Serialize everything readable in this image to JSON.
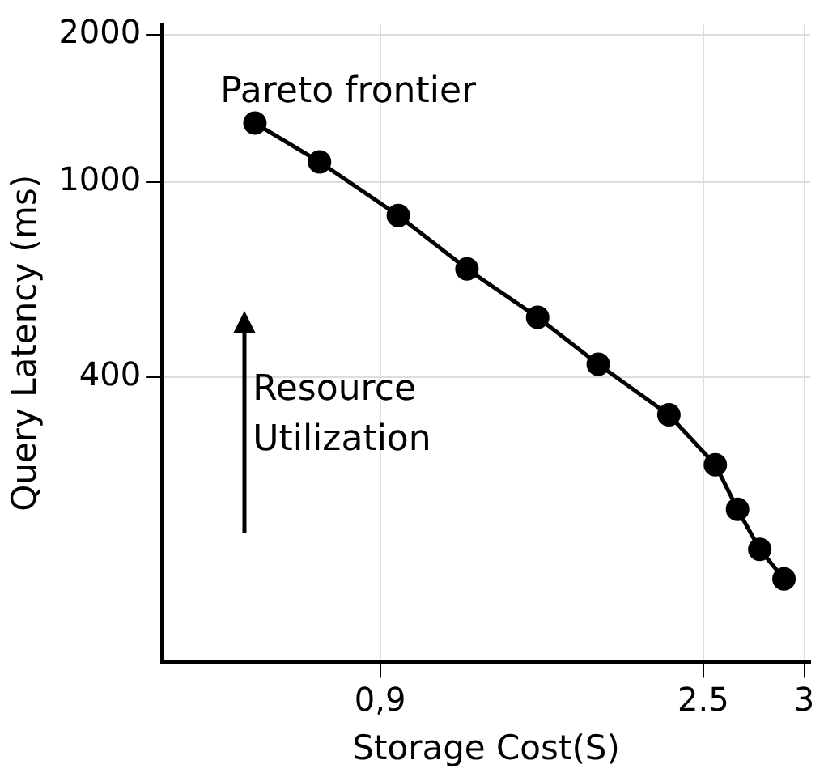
{
  "chart_data": {
    "type": "line",
    "xlabel": "Storage Cost(S)",
    "ylabel": "Query Latency (ms)",
    "x": [
      0.28,
      0.6,
      0.99,
      1.33,
      1.68,
      1.98,
      2.33,
      2.56,
      2.67,
      2.78,
      2.9
    ],
    "series": [
      {
        "color": "#000000",
        "values": [
          1320,
          1100,
          855,
          665,
          530,
          425,
          335,
          265,
          215,
          178,
          155
        ]
      }
    ],
    "log": "y",
    "xlim": [
      -0.18,
      3.03
    ],
    "ylim": [
      105,
      2100
    ],
    "xticks": [
      {
        "value": 0.9,
        "label": "0,9"
      },
      2.5,
      3
    ],
    "yticks": [
      400,
      1000,
      2000
    ],
    "grid": true,
    "marker": "circle",
    "line_style": "solid",
    "annotations": [
      "Pareto frontier",
      "Resource Utilization"
    ]
  }
}
